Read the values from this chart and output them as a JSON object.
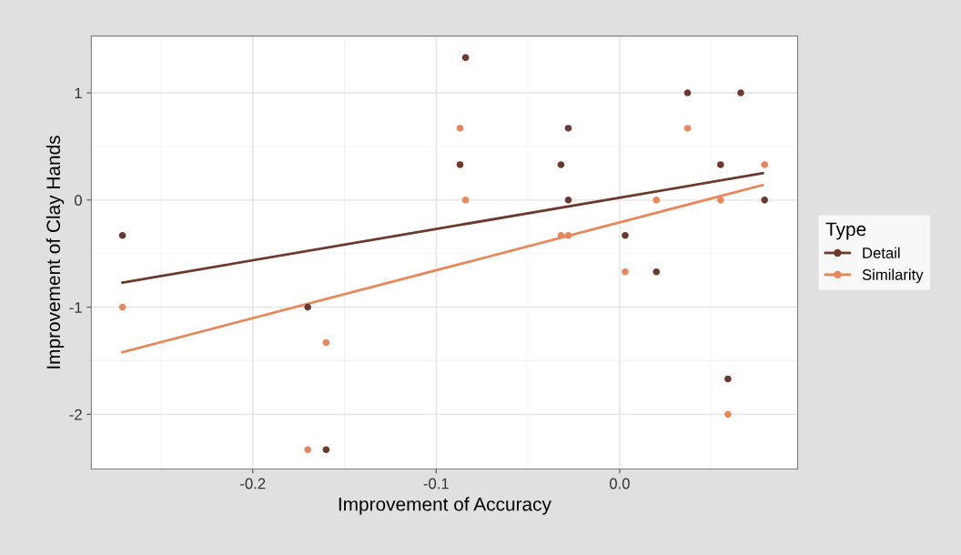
{
  "chart_data": {
    "type": "scatter",
    "xlabel": "Improvement of Accuracy",
    "ylabel": "Improvement of Clay Hands",
    "legend_title": "Type",
    "legend": "right",
    "grid": true,
    "xlim": [
      -0.288,
      0.097
    ],
    "ylim": [
      -2.51,
      1.53
    ],
    "xticks": [
      {
        "value": -0.2,
        "label": "-0.2"
      },
      {
        "value": -0.1,
        "label": "-0.1"
      },
      {
        "value": 0.0,
        "label": "0.0"
      }
    ],
    "yticks": [
      {
        "value": -2,
        "label": "-2"
      },
      {
        "value": -1,
        "label": "-1"
      },
      0,
      1
    ],
    "series": [
      {
        "name": "Detail",
        "color": "#6b3a2e",
        "marker": "circle",
        "x": [
          -0.271,
          -0.17,
          -0.16,
          -0.087,
          -0.084,
          -0.028,
          -0.032,
          -0.028,
          0.003,
          0.02,
          0.037,
          0.066,
          0.055,
          0.079,
          0.059
        ],
        "values": [
          -0.33,
          -1,
          -2.33,
          0.33,
          1.33,
          0.67,
          0.33,
          0,
          -0.33,
          -0.67,
          1,
          1,
          0.33,
          0,
          -1.67
        ]
      },
      {
        "name": "Similarity",
        "color": "#e8875a",
        "marker": "circle",
        "x": [
          -0.271,
          -0.16,
          -0.17,
          -0.087,
          -0.084,
          -0.032,
          -0.028,
          0.003,
          0.02,
          0.037,
          0.055,
          0.079,
          0.059
        ],
        "values": [
          -1,
          -1.33,
          -2.33,
          0.67,
          0,
          -0.33,
          -0.33,
          -0.67,
          0,
          0.67,
          0,
          0.33,
          -2
        ]
      },
      {
        "type": "line",
        "color": "#6b3a2e",
        "marker": "none",
        "x": [
          -0.271,
          0.078
        ],
        "values": [
          -0.77,
          0.25
        ]
      },
      {
        "type": "line",
        "color": "#e8875a",
        "marker": "none",
        "x": [
          -0.271,
          0.078
        ],
        "values": [
          -1.42,
          0.14
        ]
      }
    ]
  }
}
